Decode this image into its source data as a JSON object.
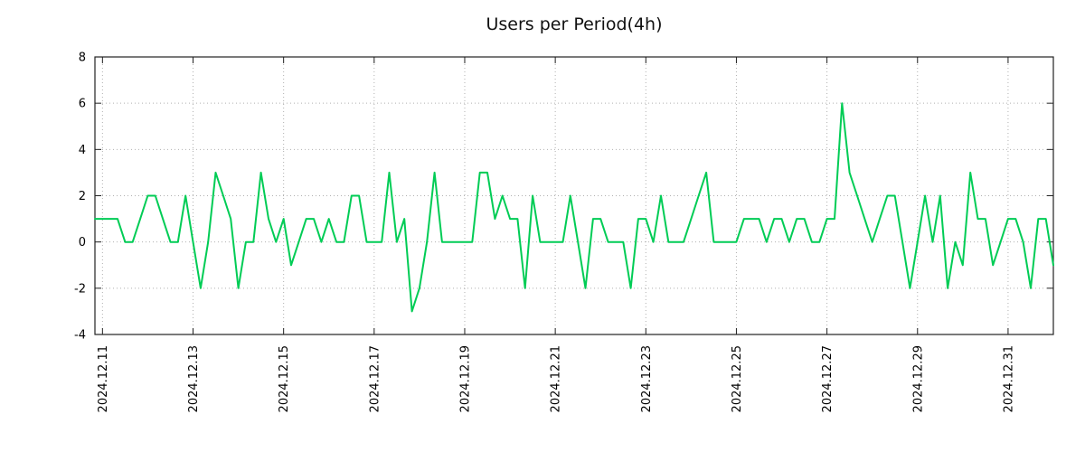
{
  "chart_data": {
    "type": "line",
    "title": "Users per Period(4h)",
    "period": "4h",
    "ylim": [
      -4,
      8
    ],
    "y_ticks": [
      -4,
      -2,
      0,
      2,
      4,
      6,
      8
    ],
    "x_tick_labels": [
      "2024.12.11",
      "2024.12.13",
      "2024.12.15",
      "2024.12.17",
      "2024.12.19",
      "2024.12.21",
      "2024.12.23",
      "2024.12.25",
      "2024.12.27",
      "2024.12.29",
      "2024.12.31"
    ],
    "x_tick_indices": [
      1,
      13,
      25,
      37,
      49,
      61,
      73,
      85,
      97,
      109,
      121
    ],
    "values": [
      1,
      1,
      1,
      1,
      0,
      0,
      1,
      2,
      2,
      1,
      0,
      0,
      2,
      0,
      -2,
      0,
      3,
      2,
      1,
      -2,
      0,
      0,
      3,
      1,
      0,
      1,
      -1,
      0,
      1,
      1,
      0,
      1,
      0,
      0,
      2,
      2,
      0,
      0,
      0,
      3,
      0,
      1,
      -3,
      -2,
      0,
      3,
      0,
      0,
      0,
      0,
      0,
      3,
      3,
      1,
      2,
      1,
      1,
      -2,
      2,
      0,
      0,
      0,
      0,
      2,
      0,
      -2,
      1,
      1,
      0,
      0,
      0,
      -2,
      1,
      1,
      0,
      2,
      0,
      0,
      0,
      1,
      2,
      3,
      0,
      0,
      0,
      0,
      1,
      1,
      1,
      0,
      1,
      1,
      0,
      1,
      1,
      0,
      0,
      1,
      1,
      6,
      3,
      2,
      1,
      0,
      1,
      2,
      2,
      0,
      -2,
      0,
      2,
      0,
      2,
      -2,
      0,
      -1,
      3,
      1,
      1,
      -1,
      0,
      1,
      1,
      0,
      -2,
      1,
      1,
      -1
    ],
    "line_color": "#00cc55",
    "grid_color": "#b0b0b0",
    "axis_color": "#222222",
    "background_color": "#ffffff",
    "grid": true,
    "legend_position": "none"
  }
}
